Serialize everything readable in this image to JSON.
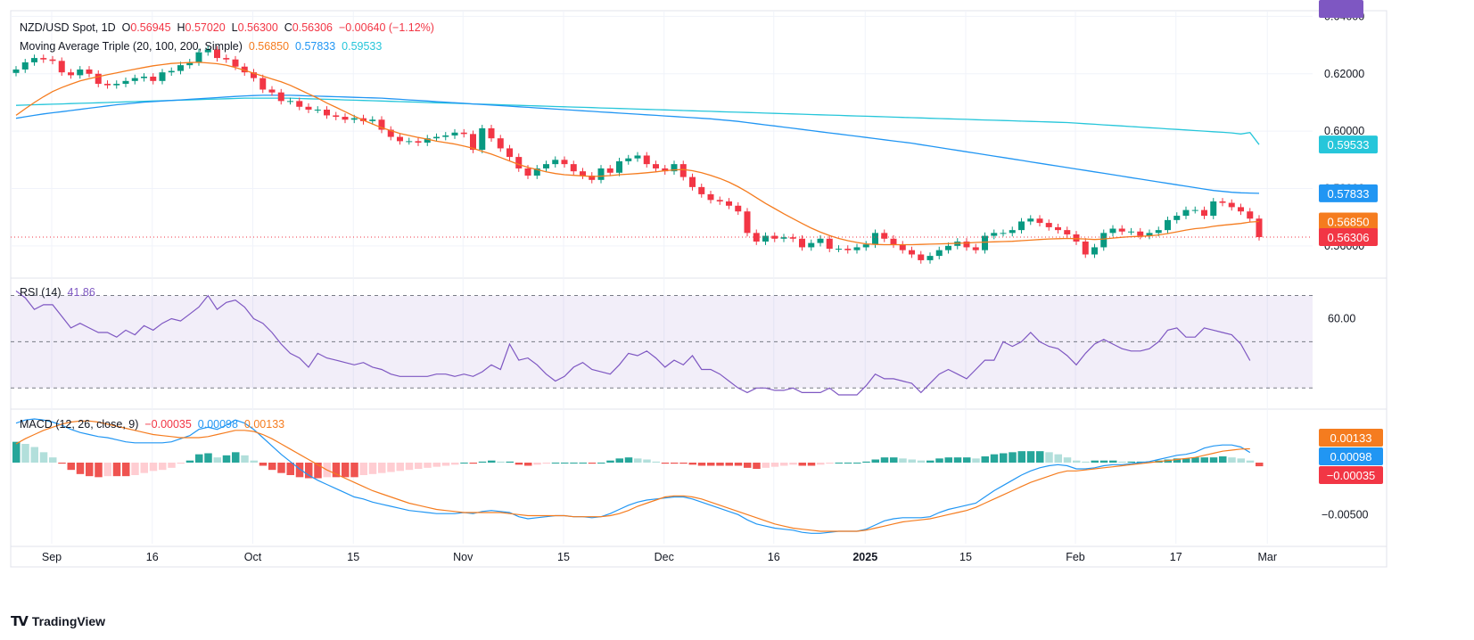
{
  "header": {
    "symbol": "NZD/USD Spot, 1D",
    "o_label": "O",
    "o_value": "0.56945",
    "h_label": "H",
    "h_value": "0.57020",
    "l_label": "L",
    "l_value": "0.56300",
    "c_label": "C",
    "c_value": "0.56306",
    "change": "−0.00640 (−1.12%)"
  },
  "ma_legend": {
    "label": "Moving Average Triple (20, 100, 200, Simple)",
    "v20": "0.56850",
    "v100": "0.57833",
    "v200": "0.59533"
  },
  "rsi_legend": {
    "label": "RSI (14)",
    "value": "41.86"
  },
  "macd_legend": {
    "label": "MACD (12, 26, close, 9)",
    "hist": "−0.00035",
    "macd": "0.00098",
    "signal": "0.00133"
  },
  "brand": {
    "name": "TradingView"
  },
  "colors": {
    "up": "#089981",
    "down": "#f23645",
    "ma20": "#f57c1f",
    "ma100": "#2196f3",
    "ma200": "#26c6da",
    "rsi": "#7e57c2",
    "macd": "#2196f3",
    "signal": "#f57c1f",
    "hist_up_strong": "#26a69a",
    "hist_up_weak": "#b2dfdb",
    "hist_dn_strong": "#ef5350",
    "hist_dn_weak": "#ffcdd2"
  },
  "chart_data": {
    "type": "candlestick",
    "title": "NZD/USD Spot, 1D",
    "price_axis_ticks": [
      "0.64000",
      "0.62000",
      "0.60000",
      "0.58000",
      "0.56000"
    ],
    "price_ylim": [
      0.55,
      0.642
    ],
    "price_badges": [
      {
        "label": "0.59533",
        "value": 0.59533,
        "color": "#26c6da"
      },
      {
        "label": "0.57833",
        "value": 0.57833,
        "color": "#2196f3"
      },
      {
        "label": "0.56850",
        "value": 0.5685,
        "color": "#f57c1f"
      },
      {
        "label": "0.56306",
        "value": 0.56306,
        "color": "#f23645"
      }
    ],
    "time_axis_labels": [
      "Sep",
      "16",
      "Oct",
      "15",
      "Nov",
      "15",
      "Dec",
      "16",
      "2025",
      "15",
      "Feb",
      "17",
      "Mar"
    ],
    "time_axis_label_index": [
      0,
      11,
      22,
      33,
      45,
      56,
      67,
      79,
      89,
      100,
      112,
      123,
      133
    ],
    "closes": [
      0.6215,
      0.624,
      0.6255,
      0.625,
      0.6245,
      0.6205,
      0.6195,
      0.6215,
      0.62,
      0.6165,
      0.616,
      0.6165,
      0.6175,
      0.6185,
      0.619,
      0.6175,
      0.6205,
      0.621,
      0.623,
      0.624,
      0.6275,
      0.6285,
      0.6255,
      0.625,
      0.6225,
      0.6205,
      0.6185,
      0.6145,
      0.6135,
      0.6105,
      0.6105,
      0.6085,
      0.6075,
      0.6075,
      0.6055,
      0.605,
      0.604,
      0.6045,
      0.6035,
      0.604,
      0.6005,
      0.598,
      0.5965,
      0.5965,
      0.596,
      0.5975,
      0.598,
      0.5985,
      0.5995,
      0.599,
      0.5935,
      0.601,
      0.5975,
      0.594,
      0.591,
      0.587,
      0.5845,
      0.587,
      0.5885,
      0.59,
      0.5885,
      0.586,
      0.5845,
      0.583,
      0.587,
      0.5855,
      0.5895,
      0.5905,
      0.5915,
      0.5885,
      0.587,
      0.586,
      0.5885,
      0.584,
      0.5805,
      0.578,
      0.576,
      0.5755,
      0.574,
      0.572,
      0.5645,
      0.5615,
      0.5635,
      0.5625,
      0.563,
      0.5625,
      0.5595,
      0.561,
      0.5625,
      0.559,
      0.559,
      0.5585,
      0.5595,
      0.5605,
      0.5645,
      0.5625,
      0.5605,
      0.5585,
      0.557,
      0.555,
      0.5565,
      0.5585,
      0.56,
      0.5615,
      0.5595,
      0.5585,
      0.5635,
      0.5645,
      0.5645,
      0.5655,
      0.5685,
      0.5695,
      0.568,
      0.5665,
      0.5655,
      0.564,
      0.5615,
      0.557,
      0.5595,
      0.5645,
      0.566,
      0.565,
      0.565,
      0.5635,
      0.5645,
      0.5655,
      0.569,
      0.5705,
      0.5725,
      0.5725,
      0.5705,
      0.5755,
      0.575,
      0.5735,
      0.572,
      0.5695,
      0.56306
    ],
    "ma20": [
      0.6055,
      0.6078,
      0.61,
      0.612,
      0.6138,
      0.6152,
      0.6164,
      0.6175,
      0.6183,
      0.619,
      0.6197,
      0.6203,
      0.621,
      0.6216,
      0.6222,
      0.6228,
      0.6232,
      0.6236,
      0.6238,
      0.6239,
      0.624,
      0.6238,
      0.6235,
      0.623,
      0.6222,
      0.6212,
      0.6202,
      0.6192,
      0.6182,
      0.6172,
      0.616,
      0.6145,
      0.613,
      0.6115,
      0.6098,
      0.6083,
      0.6068,
      0.6052,
      0.6038,
      0.6025,
      0.6012,
      0.6002,
      0.5992,
      0.5985,
      0.5978,
      0.5972,
      0.5965,
      0.596,
      0.5955,
      0.5948,
      0.594,
      0.593,
      0.592,
      0.5908,
      0.5896,
      0.5884,
      0.5874,
      0.5866,
      0.5858,
      0.5852,
      0.5848,
      0.5846,
      0.5844,
      0.5842,
      0.5843,
      0.5845,
      0.5848,
      0.585,
      0.5852,
      0.5855,
      0.5858,
      0.5862,
      0.5865,
      0.5866,
      0.5862,
      0.5855,
      0.5846,
      0.5835,
      0.5822,
      0.5806,
      0.5788,
      0.5768,
      0.5748,
      0.573,
      0.5712,
      0.5695,
      0.5678,
      0.5662,
      0.5648,
      0.5636,
      0.5626,
      0.5618,
      0.5612,
      0.5607,
      0.5605,
      0.5604,
      0.5604,
      0.5604,
      0.5604,
      0.5605,
      0.5606,
      0.5607,
      0.5608,
      0.5609,
      0.561,
      0.5612,
      0.5613,
      0.5614,
      0.5615,
      0.5616,
      0.5618,
      0.562,
      0.5622,
      0.5624,
      0.5625,
      0.5626,
      0.5625,
      0.5624,
      0.5622,
      0.5624,
      0.5627,
      0.563,
      0.5632,
      0.5633,
      0.5635,
      0.5638,
      0.5643,
      0.5649,
      0.5655,
      0.566,
      0.5663,
      0.5668,
      0.5672,
      0.5675,
      0.5678,
      0.5683,
      0.5685
    ],
    "ma100": [
      0.6045,
      0.605,
      0.6055,
      0.606,
      0.6064,
      0.6068,
      0.6072,
      0.6076,
      0.608,
      0.6084,
      0.6088,
      0.6092,
      0.6095,
      0.6098,
      0.6101,
      0.6103,
      0.6105,
      0.6107,
      0.6109,
      0.6111,
      0.6113,
      0.6115,
      0.6117,
      0.6119,
      0.6121,
      0.6123,
      0.6124,
      0.6125,
      0.6125,
      0.6125,
      0.6125,
      0.6124,
      0.6123,
      0.6122,
      0.6121,
      0.612,
      0.6119,
      0.6118,
      0.6117,
      0.6116,
      0.6115,
      0.6113,
      0.6111,
      0.6109,
      0.6107,
      0.6105,
      0.6103,
      0.6101,
      0.6099,
      0.6097,
      0.6095,
      0.6093,
      0.6091,
      0.6089,
      0.6087,
      0.6085,
      0.6083,
      0.6081,
      0.6079,
      0.6077,
      0.6075,
      0.6073,
      0.6071,
      0.6069,
      0.6067,
      0.6065,
      0.6063,
      0.6061,
      0.6059,
      0.6057,
      0.6055,
      0.6053,
      0.6051,
      0.6049,
      0.6047,
      0.6045,
      0.6043,
      0.604,
      0.6037,
      0.6034,
      0.603,
      0.6026,
      0.6022,
      0.6018,
      0.6014,
      0.601,
      0.6006,
      0.6002,
      0.5998,
      0.5994,
      0.599,
      0.5986,
      0.5982,
      0.5978,
      0.5974,
      0.597,
      0.5966,
      0.5962,
      0.5958,
      0.5953,
      0.5948,
      0.5943,
      0.5938,
      0.5933,
      0.5928,
      0.5923,
      0.5918,
      0.5913,
      0.5908,
      0.5903,
      0.5898,
      0.5893,
      0.5888,
      0.5883,
      0.5878,
      0.5873,
      0.5868,
      0.5863,
      0.5858,
      0.5853,
      0.5848,
      0.5843,
      0.5838,
      0.5833,
      0.5828,
      0.5823,
      0.5818,
      0.5813,
      0.5808,
      0.5803,
      0.5798,
      0.5793,
      0.579,
      0.5787,
      0.5785,
      0.5784,
      0.57833
    ],
    "ma200": [
      0.609,
      0.6091,
      0.6092,
      0.6093,
      0.6094,
      0.6095,
      0.6096,
      0.6097,
      0.6098,
      0.6099,
      0.61,
      0.6101,
      0.6102,
      0.6103,
      0.6104,
      0.6105,
      0.6106,
      0.6107,
      0.6108,
      0.6109,
      0.611,
      0.6111,
      0.6112,
      0.6113,
      0.6114,
      0.6115,
      0.6115,
      0.6115,
      0.6115,
      0.6115,
      0.6115,
      0.6114,
      0.6113,
      0.6112,
      0.6111,
      0.611,
      0.6109,
      0.6108,
      0.6107,
      0.6106,
      0.6105,
      0.6104,
      0.6103,
      0.6102,
      0.6101,
      0.61,
      0.6099,
      0.6098,
      0.6097,
      0.6096,
      0.6095,
      0.6094,
      0.6093,
      0.6092,
      0.6091,
      0.609,
      0.6089,
      0.6088,
      0.6087,
      0.6086,
      0.6085,
      0.6084,
      0.6083,
      0.6082,
      0.6081,
      0.608,
      0.6079,
      0.6078,
      0.6077,
      0.6076,
      0.6075,
      0.6074,
      0.6073,
      0.6072,
      0.6071,
      0.607,
      0.6069,
      0.6068,
      0.6067,
      0.6066,
      0.6065,
      0.6064,
      0.6063,
      0.6062,
      0.6061,
      0.606,
      0.6059,
      0.6058,
      0.6057,
      0.6056,
      0.6055,
      0.6054,
      0.6053,
      0.6052,
      0.6051,
      0.605,
      0.6049,
      0.6048,
      0.6047,
      0.6046,
      0.6045,
      0.6044,
      0.6043,
      0.6042,
      0.6041,
      0.604,
      0.6039,
      0.6038,
      0.6037,
      0.6036,
      0.6035,
      0.6034,
      0.6033,
      0.6032,
      0.6031,
      0.603,
      0.6028,
      0.6026,
      0.6024,
      0.6022,
      0.602,
      0.6018,
      0.6016,
      0.6014,
      0.6012,
      0.601,
      0.6008,
      0.6006,
      0.6004,
      0.6002,
      0.6,
      0.5998,
      0.5996,
      0.5994,
      0.599,
      0.5995,
      0.59533
    ],
    "rsi_axis_ticks": [
      "60.00"
    ],
    "rsi_ylim": [
      22,
      76
    ],
    "rsi_band": [
      30,
      70
    ],
    "rsi": [
      72,
      69,
      64,
      66,
      66,
      61,
      56,
      58,
      56,
      54,
      54,
      52,
      55,
      53,
      57,
      55,
      58,
      60,
      59,
      62,
      65,
      70,
      64,
      67,
      68,
      65,
      60,
      58,
      54,
      49,
      45,
      43,
      39,
      45,
      43,
      42,
      41,
      40,
      41,
      39,
      38,
      36,
      35,
      35,
      35,
      35,
      36,
      36,
      35,
      36,
      35,
      37,
      40,
      38,
      49,
      42,
      43,
      40,
      36,
      33,
      35,
      39,
      41,
      38,
      37,
      36,
      40,
      45,
      44,
      46,
      43,
      39,
      42,
      40,
      44,
      38,
      38,
      36,
      33,
      30,
      28,
      30,
      30,
      29,
      29,
      30,
      28,
      28,
      28,
      30,
      27,
      27,
      27,
      31,
      36,
      34,
      34,
      33,
      32,
      28,
      32,
      36,
      38,
      36,
      34,
      38,
      42,
      42,
      50,
      48,
      50,
      54,
      50,
      48,
      47,
      44,
      40,
      45,
      49,
      51,
      49,
      47,
      46,
      46,
      47,
      50,
      55,
      56,
      52,
      52,
      56,
      55,
      54,
      53,
      49,
      41.86
    ],
    "macd_axis_ticks": [
      "−0.00500"
    ],
    "macd_ylim": [
      -0.0078,
      0.0048
    ],
    "macd": [
      0.0038,
      0.0041,
      0.0042,
      0.0041,
      0.0039,
      0.0036,
      0.0032,
      0.0029,
      0.0027,
      0.0025,
      0.0024,
      0.0022,
      0.002,
      0.0019,
      0.0019,
      0.0019,
      0.0019,
      0.002,
      0.0023,
      0.0026,
      0.0032,
      0.0034,
      0.0032,
      0.0036,
      0.0041,
      0.0038,
      0.0032,
      0.0024,
      0.0016,
      0.0008,
      0.0001,
      -0.0006,
      -0.0012,
      -0.0017,
      -0.0021,
      -0.0025,
      -0.0029,
      -0.0033,
      -0.0035,
      -0.0038,
      -0.004,
      -0.0042,
      -0.0044,
      -0.0046,
      -0.0047,
      -0.0048,
      -0.0049,
      -0.0049,
      -0.0049,
      -0.0048,
      -0.0049,
      -0.0047,
      -0.0046,
      -0.0047,
      -0.0048,
      -0.0052,
      -0.0054,
      -0.0053,
      -0.0052,
      -0.0051,
      -0.0051,
      -0.0052,
      -0.0052,
      -0.0053,
      -0.0052,
      -0.0049,
      -0.0045,
      -0.0041,
      -0.0038,
      -0.0036,
      -0.0035,
      -0.0034,
      -0.0033,
      -0.0033,
      -0.0035,
      -0.0038,
      -0.0041,
      -0.0044,
      -0.0047,
      -0.005,
      -0.0055,
      -0.0059,
      -0.0061,
      -0.0063,
      -0.0064,
      -0.0065,
      -0.0067,
      -0.0068,
      -0.0068,
      -0.0067,
      -0.0066,
      -0.0066,
      -0.0066,
      -0.0064,
      -0.006,
      -0.0056,
      -0.0054,
      -0.0053,
      -0.0053,
      -0.0053,
      -0.0052,
      -0.0048,
      -0.0045,
      -0.0043,
      -0.0041,
      -0.0039,
      -0.0033,
      -0.0027,
      -0.0022,
      -0.0017,
      -0.0012,
      -0.0008,
      -0.0005,
      -0.0003,
      -0.0002,
      -0.0003,
      -0.0006,
      -0.0006,
      -0.0005,
      -0.0003,
      -0.0002,
      -0.0002,
      -0.0001,
      0.0,
      0.0001,
      0.0003,
      0.0005,
      0.0007,
      0.0008,
      0.001,
      0.0014,
      0.0016,
      0.0017,
      0.0017,
      0.0015,
      0.00098
    ],
    "signal": [
      0.0018,
      0.0023,
      0.0027,
      0.0031,
      0.0034,
      0.0037,
      0.0039,
      0.004,
      0.004,
      0.0039,
      0.0037,
      0.0035,
      0.0033,
      0.0031,
      0.0029,
      0.0027,
      0.0026,
      0.0025,
      0.0024,
      0.0024,
      0.0024,
      0.0025,
      0.0027,
      0.0029,
      0.0031,
      0.0031,
      0.003,
      0.0027,
      0.0023,
      0.0018,
      0.0013,
      0.0008,
      0.0003,
      -0.0002,
      -0.0007,
      -0.0011,
      -0.0015,
      -0.0019,
      -0.0023,
      -0.0027,
      -0.003,
      -0.0033,
      -0.0036,
      -0.0039,
      -0.0041,
      -0.0043,
      -0.0045,
      -0.0046,
      -0.0047,
      -0.0048,
      -0.0048,
      -0.0048,
      -0.0048,
      -0.0048,
      -0.0049,
      -0.005,
      -0.0051,
      -0.0051,
      -0.0051,
      -0.0051,
      -0.0051,
      -0.0052,
      -0.0052,
      -0.0052,
      -0.0052,
      -0.0051,
      -0.0049,
      -0.0046,
      -0.0042,
      -0.0039,
      -0.0036,
      -0.0033,
      -0.0032,
      -0.0032,
      -0.0033,
      -0.0035,
      -0.0038,
      -0.0041,
      -0.0044,
      -0.0047,
      -0.005,
      -0.0053,
      -0.0056,
      -0.0059,
      -0.0061,
      -0.0063,
      -0.0064,
      -0.0065,
      -0.0066,
      -0.0066,
      -0.0066,
      -0.0066,
      -0.0066,
      -0.0065,
      -0.0063,
      -0.0061,
      -0.0059,
      -0.0057,
      -0.0056,
      -0.0055,
      -0.0054,
      -0.0052,
      -0.005,
      -0.0048,
      -0.0046,
      -0.0043,
      -0.0039,
      -0.0035,
      -0.0031,
      -0.0027,
      -0.0023,
      -0.0019,
      -0.0016,
      -0.0013,
      -0.001,
      -0.0008,
      -0.0008,
      -0.0007,
      -0.0006,
      -0.0005,
      -0.0004,
      -0.0003,
      -0.0002,
      -0.0001,
      0.0,
      0.0001,
      0.0002,
      0.0003,
      0.0004,
      0.0005,
      0.0007,
      0.0009,
      0.0011,
      0.0012,
      0.0013,
      0.00133
    ],
    "histogram": [
      0.002,
      0.0018,
      0.0015,
      0.001,
      0.0005,
      -0.0001,
      -0.0007,
      -0.0011,
      -0.0013,
      -0.0014,
      -0.0013,
      -0.0013,
      -0.0013,
      -0.0012,
      -0.001,
      -0.0008,
      -0.0007,
      -0.0005,
      -0.0001,
      0.0002,
      0.0008,
      0.0009,
      0.0005,
      0.0007,
      0.001,
      0.0007,
      0.0002,
      -0.0003,
      -0.0007,
      -0.001,
      -0.0012,
      -0.0014,
      -0.0015,
      -0.0015,
      -0.0014,
      -0.0014,
      -0.0014,
      -0.0014,
      -0.0012,
      -0.0011,
      -0.001,
      -0.0009,
      -0.0008,
      -0.0007,
      -0.0006,
      -0.0005,
      -0.0004,
      -0.0003,
      -0.0002,
      0.0,
      -0.0001,
      0.0001,
      0.0002,
      0.0001,
      0.0001,
      -0.0002,
      -0.0003,
      -0.0002,
      -0.0001,
      0.0,
      0.0,
      0.0,
      0.0,
      -0.0001,
      0.0,
      0.0002,
      0.0004,
      0.0005,
      0.0004,
      0.0003,
      0.0001,
      -0.0001,
      -0.0001,
      -0.0001,
      -0.0002,
      -0.0003,
      -0.0003,
      -0.0003,
      -0.0003,
      -0.0003,
      -0.0005,
      -0.0006,
      -0.0005,
      -0.0004,
      -0.0003,
      -0.0002,
      -0.0003,
      -0.0003,
      -0.0002,
      -0.0001,
      0.0,
      0.0,
      0.0,
      0.0001,
      0.0003,
      0.0005,
      0.0005,
      0.0004,
      0.0003,
      0.0002,
      0.0002,
      0.0004,
      0.0005,
      0.0005,
      0.0005,
      0.0004,
      0.0006,
      0.0008,
      0.0009,
      0.001,
      0.0011,
      0.0011,
      0.0011,
      0.001,
      0.0008,
      0.0005,
      0.0002,
      0.0001,
      0.0002,
      0.0002,
      0.0002,
      0.0001,
      0.0001,
      0.0001,
      0.0001,
      0.0002,
      0.0003,
      0.0004,
      0.0004,
      0.0005,
      0.0005,
      0.0005,
      0.0006,
      0.0005,
      0.0004,
      0.0002,
      -0.00035
    ]
  }
}
